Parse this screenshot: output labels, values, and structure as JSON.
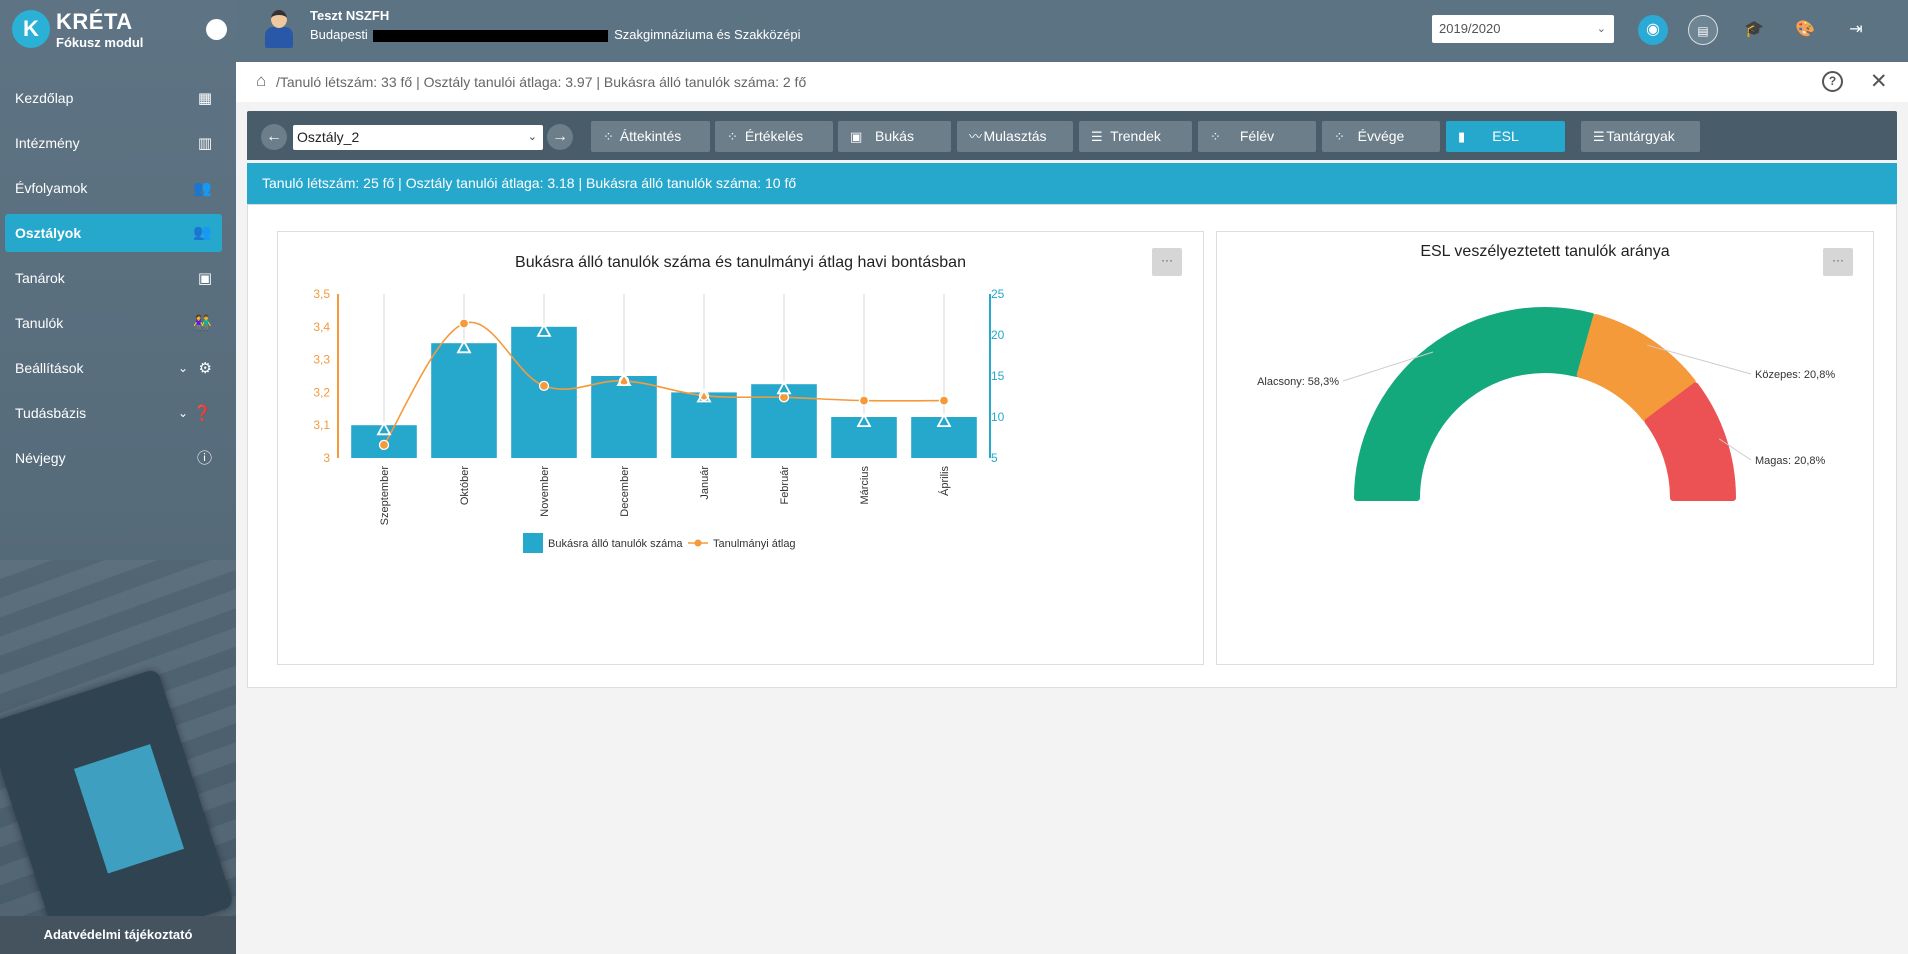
{
  "app": {
    "logo_letter": "K",
    "title": "KRÉTA",
    "subtitle": "Fókusz modul"
  },
  "sidebar": {
    "items": [
      {
        "label": "Kezdőlap",
        "icon": "dashboard-icon"
      },
      {
        "label": "Intézmény",
        "icon": "building-icon"
      },
      {
        "label": "Évfolyamok",
        "icon": "people-icon"
      },
      {
        "label": "Osztályok",
        "icon": "people-icon",
        "active": true
      },
      {
        "label": "Tanárok",
        "icon": "contact-card-icon"
      },
      {
        "label": "Tanulók",
        "icon": "students-icon"
      },
      {
        "label": "Beállítások",
        "icon": "gear-icon"
      },
      {
        "label": "Tudásbázis",
        "icon": "help-icon"
      },
      {
        "label": "Névjegy",
        "icon": "info-icon"
      }
    ],
    "privacy": "Adatvédelmi tájékoztató"
  },
  "header": {
    "user_name": "Teszt NSZFH",
    "school_prefix": "Budapesti",
    "school_suffix": "Szakgimnáziuma és Szakközépi",
    "year": "2019/2020"
  },
  "breadcrumb": {
    "text": "/Tanuló létszám: 33 fő | Osztály tanulói átlaga: 3.97 | Bukásra álló tanulók száma: 2 fő",
    "help": "?",
    "close": "✕"
  },
  "toolbar": {
    "class_value": "Osztály_2",
    "tabs": [
      {
        "label": "Áttekintés",
        "icon": "bubbles-icon"
      },
      {
        "label": "Értékelés",
        "icon": "bubbles-icon"
      },
      {
        "label": "Bukás",
        "icon": "badge-icon"
      },
      {
        "label": "Mulasztás",
        "icon": "trend-icon"
      },
      {
        "label": "Trendek",
        "icon": "lines-icon"
      },
      {
        "label": "Félév",
        "icon": "bubbles-icon"
      },
      {
        "label": "Évvége",
        "icon": "bubbles-icon"
      },
      {
        "label": "ESL",
        "icon": "bar-chart-icon",
        "active": true
      },
      {
        "label": "Tantárgyak",
        "icon": "lines-icon"
      }
    ]
  },
  "info": {
    "text": "Tanuló létszám: 25 fő | Osztály tanulói átlaga: 3.18 | Bukásra álló tanulók száma: 10 fő"
  },
  "colors": {
    "accent": "#26a8cc",
    "orange": "#f59a3b",
    "green": "#14a97d",
    "red": "#ec5253"
  },
  "chart_data": [
    {
      "type": "bar",
      "title": "Bukásra álló tanulók száma és tanulmányi átlag havi bontásban",
      "categories": [
        "Szeptember",
        "Október",
        "November",
        "December",
        "Január",
        "Február",
        "Március",
        "Április"
      ],
      "series": [
        {
          "name": "Bukásra álló tanulók száma",
          "type": "bar",
          "axis": "right",
          "values": [
            9,
            19,
            21,
            15,
            13,
            14,
            10,
            10
          ],
          "markers": [
            8.5,
            18.5,
            20.5,
            14.5,
            12.5,
            13.5,
            9.5,
            9.5
          ]
        },
        {
          "name": "Tanulmányi átlag",
          "type": "line",
          "axis": "left",
          "values": [
            3.04,
            3.41,
            3.22,
            3.235,
            3.19,
            3.185,
            3.175,
            3.175
          ]
        }
      ],
      "y_left": {
        "ticks": [
          "3",
          "3,1",
          "3,2",
          "3,3",
          "3,4",
          "3,5"
        ],
        "range": [
          3,
          3.5
        ]
      },
      "y_right": {
        "ticks": [
          "5",
          "10",
          "15",
          "20",
          "25"
        ],
        "range": [
          5,
          25
        ]
      },
      "legend": "bottom",
      "menu": "···"
    },
    {
      "type": "pie",
      "title": "ESL veszélyeztetett tanulók aránya",
      "slices": [
        {
          "label": "Alacsony: 58,3%",
          "value": 58.3
        },
        {
          "label": "Közepes: 20,8%",
          "value": 20.8
        },
        {
          "label": "Magas: 20,8%",
          "value": 20.8
        }
      ],
      "menu": "···"
    }
  ]
}
